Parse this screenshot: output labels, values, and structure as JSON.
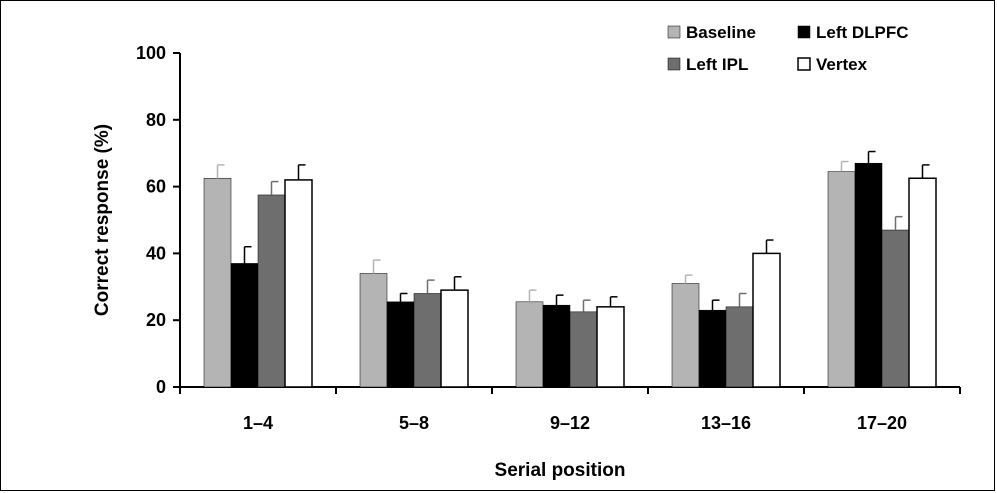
{
  "chart_data": {
    "type": "bar",
    "xlabel": "Serial position",
    "ylabel": "Correct response (%)",
    "ylim": [
      0,
      100
    ],
    "yticks": [
      "0",
      "20",
      "40",
      "60",
      "80",
      "100"
    ],
    "categories": [
      "1–4",
      "5–8",
      "9–12",
      "13–16",
      "17–20"
    ],
    "legend_position": "top-right",
    "grid": false,
    "series": [
      {
        "name": "Baseline",
        "color": "#b4b4b4",
        "values": [
          62.5,
          34,
          25.5,
          31,
          64.5
        ],
        "errors": [
          4,
          4,
          3.5,
          2.5,
          3
        ]
      },
      {
        "name": "Left DLPFC",
        "color": "#000000",
        "values": [
          37,
          25.5,
          24.5,
          23,
          67
        ],
        "errors": [
          5,
          2.5,
          3,
          3,
          3.5
        ]
      },
      {
        "name": "Left IPL",
        "color": "#6e6e6e",
        "values": [
          57.5,
          28,
          22.5,
          24,
          47
        ],
        "errors": [
          4,
          4,
          3.5,
          4,
          4
        ]
      },
      {
        "name": "Vertex",
        "color": "#ffffff",
        "values": [
          62,
          29,
          24,
          40,
          62.5
        ],
        "errors": [
          4.5,
          4,
          3,
          4,
          4
        ]
      }
    ]
  }
}
